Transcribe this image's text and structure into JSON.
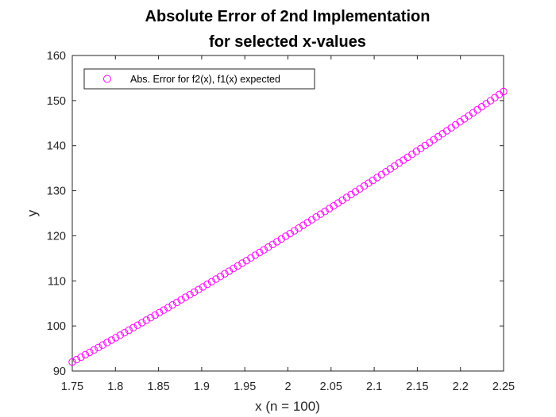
{
  "chart_data": {
    "type": "scatter",
    "title_lines": [
      "Absolute Error of 2nd Implementation",
      "for selected x-values"
    ],
    "xlabel": "x (n = 100)",
    "ylabel": "y",
    "xlim": [
      1.75,
      2.25
    ],
    "ylim": [
      90,
      160
    ],
    "xticks": [
      "1.75",
      "1.8",
      "1.85",
      "1.9",
      "1.95",
      "2",
      "2.05",
      "2.1",
      "2.15",
      "2.2",
      "2.25"
    ],
    "yticks": [
      "90",
      "100",
      "110",
      "120",
      "130",
      "140",
      "150",
      "160"
    ],
    "grid": false,
    "legend_position": "top-left",
    "series": [
      {
        "name": "Abs. Error for f2(x), f1(x) expected",
        "marker": "circle-open",
        "color": "#ff00ff",
        "n_points": 100,
        "x_range": [
          1.75,
          2.25
        ],
        "y_range": [
          92,
          152
        ],
        "curve": "smooth, slightly convex increasing"
      }
    ]
  }
}
